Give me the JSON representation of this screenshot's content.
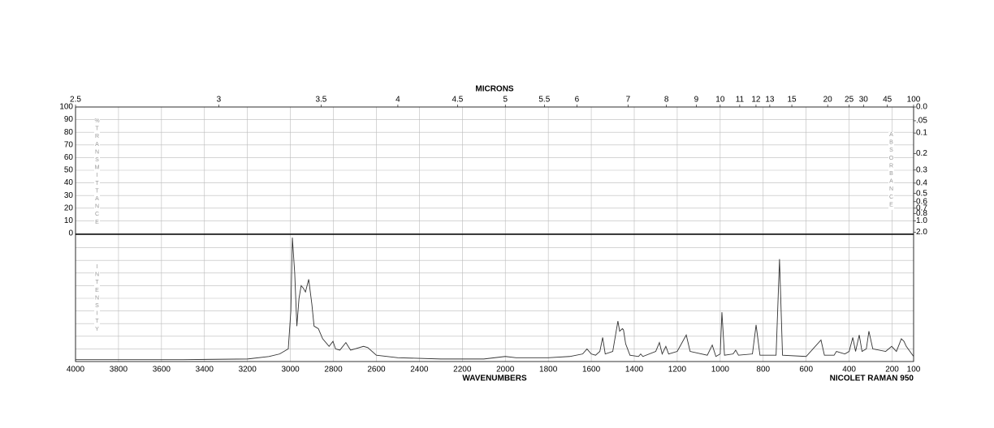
{
  "chart_data": {
    "type": "line",
    "top_axis_title": "MICRONS",
    "x_title": "WAVENUMBERS",
    "instrument": "NICOLET RAMAN 950",
    "transmittance_label": "%TRANSMITTANCE",
    "absorbance_label": "ABSORBANCE",
    "intensity_label": "INTENSITY",
    "xlim": [
      4000,
      100
    ],
    "xticks": [
      4000,
      3800,
      3600,
      3400,
      3200,
      3000,
      2800,
      2600,
      2400,
      2200,
      2000,
      1800,
      1600,
      1400,
      1200,
      1000,
      800,
      600,
      400,
      200,
      100
    ],
    "top_ticks": [
      2.5,
      3,
      3.5,
      4,
      4.5,
      5,
      5.5,
      6,
      7,
      8,
      9,
      10,
      11,
      12,
      13,
      15,
      20,
      25,
      30,
      45,
      100
    ],
    "ylim": [
      0,
      100
    ],
    "yticks": [
      0,
      10,
      20,
      30,
      40,
      50,
      60,
      70,
      80,
      90,
      100
    ],
    "y2ticks": [
      {
        "value": 0,
        "label": "0.0"
      },
      {
        "value": 0.05,
        "label": ".05"
      },
      0.1,
      0.2,
      0.3,
      0.4,
      0.5,
      0.6,
      0.7,
      0.8,
      {
        "value": 1,
        "label": "1.0"
      },
      {
        "value": 2,
        "label": "2.0"
      }
    ],
    "intensity_ylim": [
      0,
      100
    ],
    "grid": true,
    "x": [
      4000,
      3500,
      3200,
      3100,
      3050,
      3010,
      2998,
      2991,
      2980,
      2970,
      2960,
      2950,
      2940,
      2930,
      2915,
      2900,
      2890,
      2870,
      2850,
      2820,
      2802,
      2790,
      2770,
      2742,
      2720,
      2700,
      2660,
      2640,
      2600,
      2500,
      2300,
      2100,
      2000,
      1950,
      1800,
      1700,
      1640,
      1620,
      1600,
      1580,
      1560,
      1547,
      1535,
      1500,
      1476,
      1468,
      1455,
      1450,
      1440,
      1420,
      1380,
      1370,
      1360,
      1300,
      1283,
      1270,
      1253,
      1240,
      1200,
      1158,
      1140,
      1060,
      1037,
      1020,
      1000,
      992,
      980,
      940,
      928,
      915,
      850,
      833,
      815,
      740,
      724,
      710,
      600,
      531,
      515,
      470,
      459,
      420,
      400,
      383,
      370,
      353,
      340,
      320,
      308,
      290,
      230,
      202,
      180,
      157,
      145,
      134,
      100
    ],
    "series": [
      {
        "color": "#333333",
        "values": [
          1.5,
          1.5,
          2,
          4,
          6,
          10,
          40,
          98,
          70,
          28,
          50,
          60,
          58,
          55,
          65,
          45,
          28,
          26,
          18,
          12,
          16,
          10,
          9,
          15,
          9,
          10,
          12,
          11,
          5,
          3,
          2,
          2,
          4,
          3,
          3,
          4,
          6,
          10,
          6,
          5,
          8,
          19,
          6,
          8,
          32,
          24,
          26,
          25,
          14,
          5,
          4,
          6,
          4,
          8,
          15,
          6,
          12,
          6,
          8,
          21,
          8,
          5,
          13,
          4,
          6,
          39,
          5,
          6,
          9,
          5,
          6,
          29,
          5,
          5,
          81,
          5,
          4,
          17,
          5,
          5,
          8,
          6,
          8,
          19,
          8,
          21,
          8,
          10,
          24,
          10,
          8,
          12,
          8,
          18,
          16,
          12,
          4
        ]
      }
    ]
  }
}
